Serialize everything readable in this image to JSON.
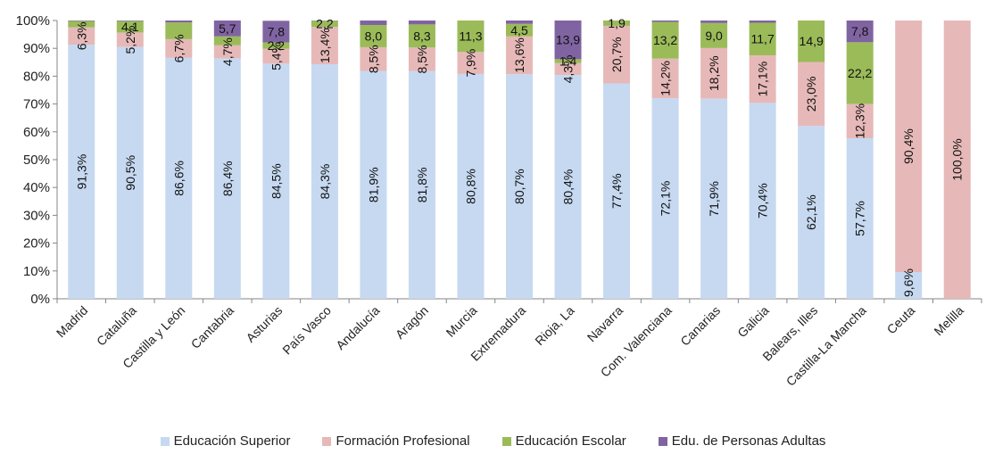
{
  "chart_data": {
    "type": "bar",
    "stacked": true,
    "normalized": true,
    "title": "",
    "xlabel": "",
    "ylabel": "",
    "ylim": [
      0,
      100
    ],
    "y_ticks": [
      "0%",
      "10%",
      "20%",
      "30%",
      "40%",
      "50%",
      "60%",
      "70%",
      "80%",
      "90%",
      "100%"
    ],
    "grid": false,
    "legend_position": "bottom",
    "categories": [
      "Madrid",
      "Cataluña",
      "Castilla y León",
      "Cantabria",
      "Asturias",
      "País Vasco",
      "Andalucía",
      "Aragón",
      "Murcia",
      "Extremadura",
      "Rioja, La",
      "Navarra",
      "Com. Valenciana",
      "Canarias",
      "Galicia",
      "Balears, Illes",
      "Castilla-La Mancha",
      "Ceuta",
      "Melilla"
    ],
    "series": [
      {
        "name": "Educación Superior",
        "color": "#c6d9f1",
        "values": [
          91.3,
          90.5,
          86.6,
          86.4,
          84.5,
          84.3,
          81.9,
          81.8,
          80.8,
          80.7,
          80.4,
          77.4,
          72.1,
          71.9,
          70.4,
          62.1,
          57.7,
          9.6,
          0
        ],
        "labels": [
          "91,3%",
          "90,5%",
          "86,6%",
          "86,4%",
          "84,5%",
          "84,3%",
          "81,9%",
          "81,8%",
          "80,8%",
          "80,7%",
          "80,4%",
          "77,4%",
          "72,1%",
          "71,9%",
          "70,4%",
          "62,1%",
          "57,7%",
          "9,6%",
          ""
        ]
      },
      {
        "name": "Formación Profesional",
        "color": "#e6b9b8",
        "values": [
          6.3,
          5.2,
          6.7,
          4.7,
          5.4,
          13.4,
          8.5,
          8.5,
          7.9,
          13.6,
          4.3,
          20.7,
          14.2,
          18.2,
          17.1,
          23.0,
          12.3,
          90.4,
          100.0
        ],
        "labels": [
          "6,3%",
          "5,2%",
          "6,7%",
          "4,7%",
          "5,4%",
          "13,4%",
          "8,5%",
          "8,5%",
          "7,9%",
          "13,6%",
          "4,3%",
          "20,7%",
          "14,2%",
          "18,2%",
          "17,1%",
          "23,0%",
          "12,3%",
          "90,4%",
          "100,0%"
        ]
      },
      {
        "name": "Educación Escolar",
        "color": "#9bbb59",
        "values": [
          2.2,
          4.1,
          6.0,
          3.2,
          2.2,
          2.2,
          8.0,
          8.3,
          11.3,
          4.5,
          1.4,
          1.9,
          13.2,
          9.0,
          11.7,
          14.9,
          22.2,
          0,
          0
        ],
        "labels": [
          "",
          "4,1",
          "",
          "",
          "2,2",
          "2,2",
          "8,0",
          "8,3",
          "11,3",
          "4,5",
          "1,4",
          "1,9",
          "13,2",
          "9,0",
          "11,7",
          "14,9",
          "22,2",
          "",
          ""
        ]
      },
      {
        "name": "Edu. de Personas Adultas",
        "color": "#8064a2",
        "values": [
          0.2,
          0.2,
          0.7,
          5.7,
          7.8,
          0.1,
          1.6,
          1.4,
          0,
          1.2,
          13.9,
          0,
          0.5,
          0.9,
          0.8,
          0,
          7.8,
          0,
          0
        ],
        "labels": [
          "",
          "",
          "",
          "5,7",
          "7,8",
          "",
          "",
          "",
          "",
          "",
          "13,9",
          "",
          "",
          "",
          "",
          "",
          "7,8",
          "",
          ""
        ]
      }
    ]
  }
}
